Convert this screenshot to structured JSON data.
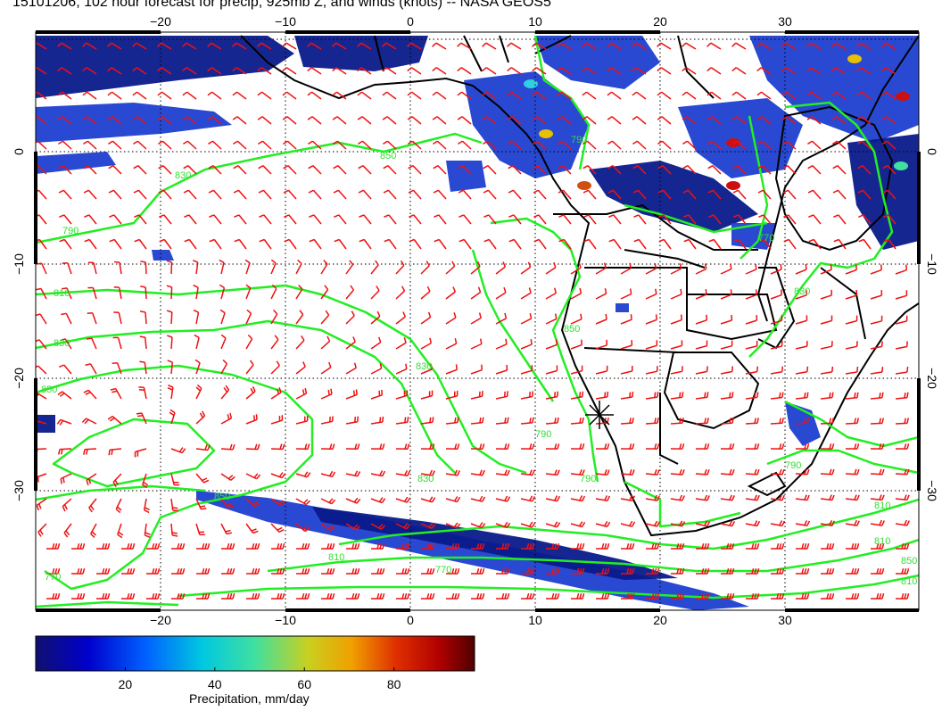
{
  "title": "15101206, 102 hour forecast for precip, 925mb Z, and winds (knots) -- NASA GEOS5",
  "colors": {
    "precip_dark": "#0a1a8a",
    "precip_mid": "#1e3fd0",
    "contour": "#22ee22",
    "wind": "#ee1111",
    "coast": "#000000"
  },
  "map": {
    "lon_ticks": [
      "−20",
      "−10",
      "0",
      "10",
      "20",
      "30"
    ],
    "lat_ticks": [
      "0",
      "−10",
      "−20",
      "−30"
    ],
    "lon_ticks_right": [
      "0",
      "−10",
      "−20",
      "−30"
    ],
    "contour_labels": [
      "790",
      "810",
      "830",
      "850",
      "810",
      "830",
      "790",
      "830",
      "850",
      "790",
      "770",
      "810",
      "850",
      "790",
      "810",
      "790",
      "770",
      "830",
      "810",
      "850",
      "830",
      "850",
      "770"
    ]
  },
  "colorbar": {
    "ticks": [
      "20",
      "40",
      "60",
      "80"
    ],
    "label": "Precipitation, mm/day",
    "range": [
      0,
      98
    ]
  }
}
